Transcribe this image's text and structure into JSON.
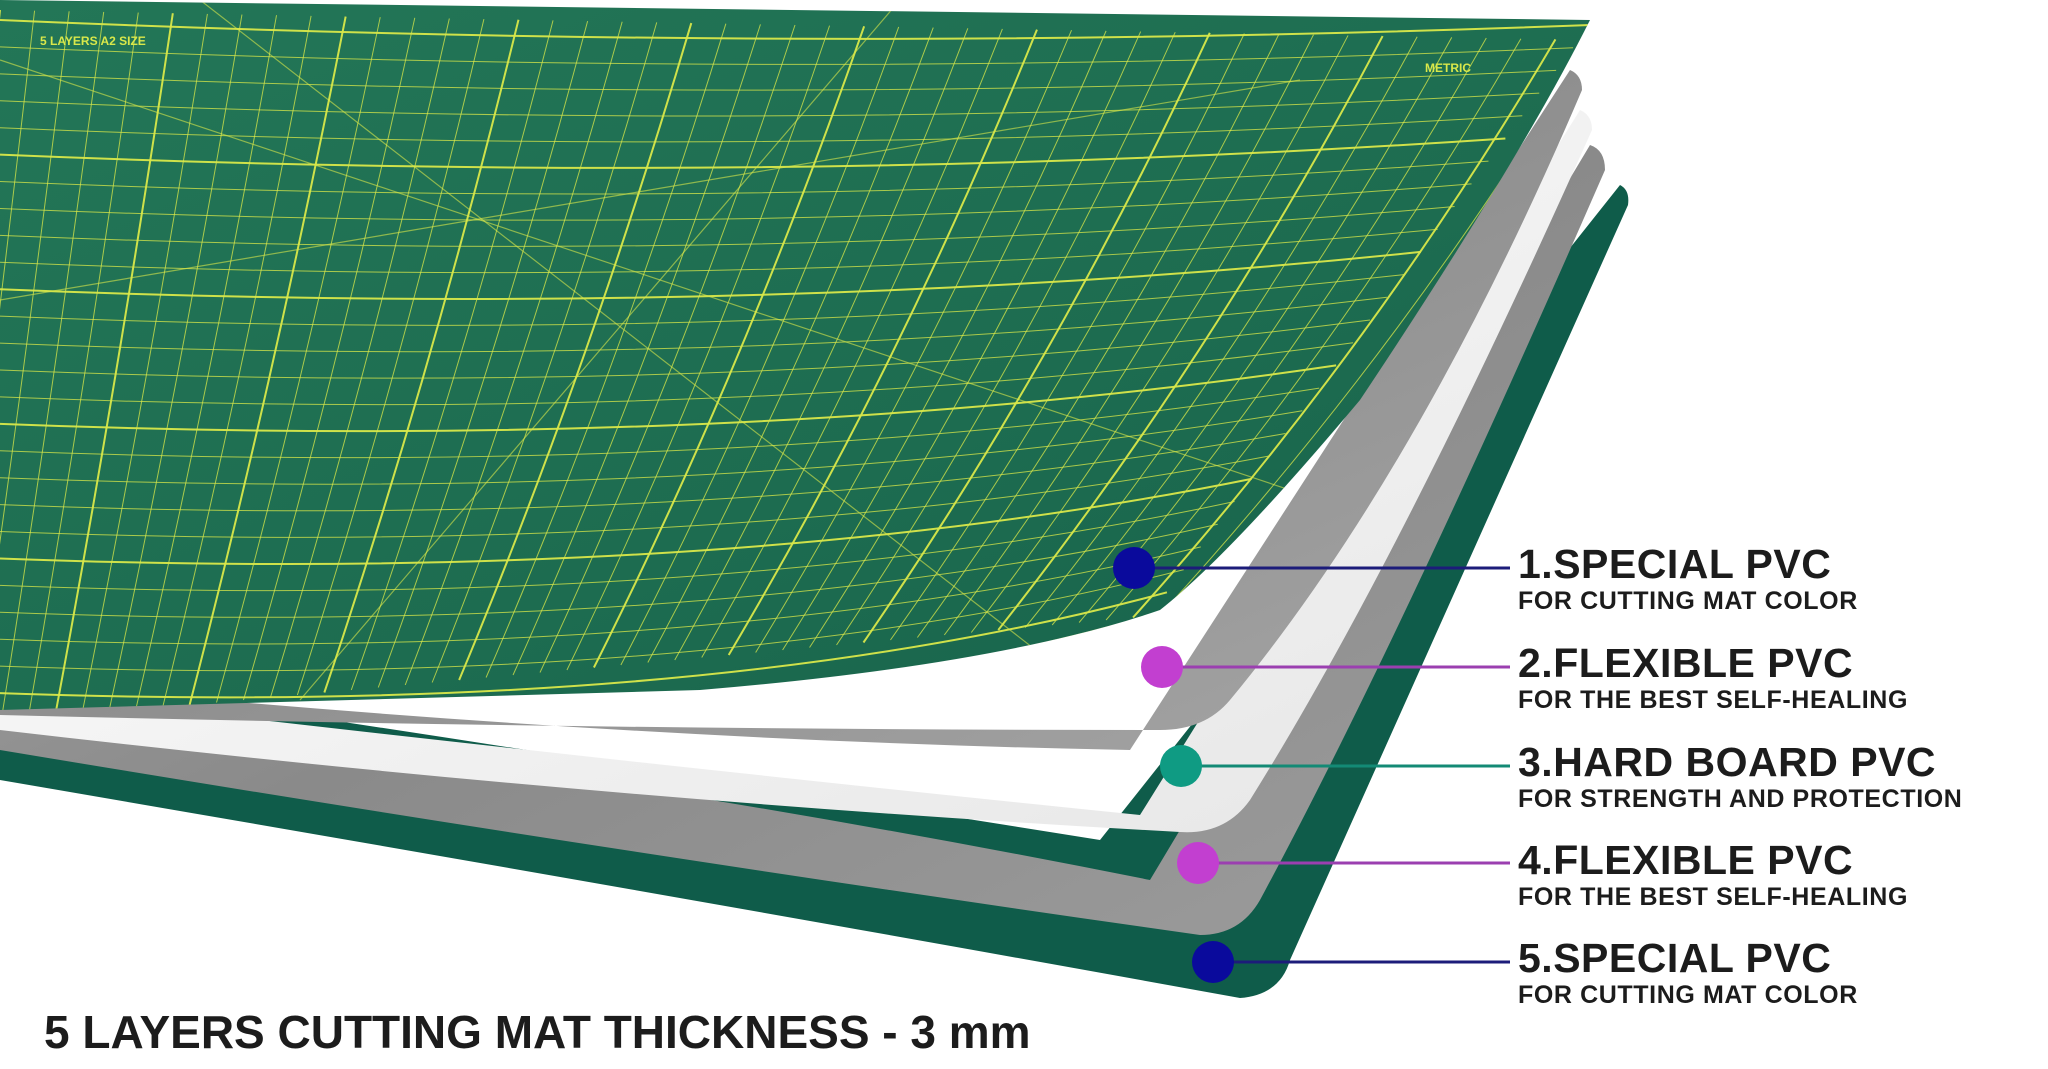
{
  "layers": [
    {
      "title": "1.SPECIAL PVC",
      "subtitle": "FOR CUTTING MAT COLOR",
      "dot_color": "#0a0a9c",
      "line_color": "#1c1c7a"
    },
    {
      "title": "2.FLEXIBLE PVC",
      "subtitle": "FOR THE BEST SELF-HEALING",
      "dot_color": "#c23fd0",
      "line_color": "#9b3fb0"
    },
    {
      "title": "3.HARD BOARD PVC",
      "subtitle": "FOR STRENGTH AND PROTECTION",
      "dot_color": "#0f9b83",
      "line_color": "#138a75"
    },
    {
      "title": "4.FLEXIBLE PVC",
      "subtitle": "FOR THE BEST SELF-HEALING",
      "dot_color": "#c23fd0",
      "line_color": "#9b3fb0"
    },
    {
      "title": "5.SPECIAL PVC",
      "subtitle": "FOR CUTTING MAT COLOR",
      "dot_color": "#0a0a9c",
      "line_color": "#1c1c7a"
    }
  ],
  "footer": "5 LAYERS CUTTING MAT THICKNESS - 3 mm",
  "mat": {
    "header_text": "5 LAYERS    A2 SIZE",
    "corner_text": "METRIC",
    "mat_color": "#1f6f52",
    "grid_color": "#d9e84a",
    "base_color": "#0f5c4a",
    "flexible_layer_color": "#9c9c9c",
    "hard_board_color": "#f2f2f2"
  }
}
